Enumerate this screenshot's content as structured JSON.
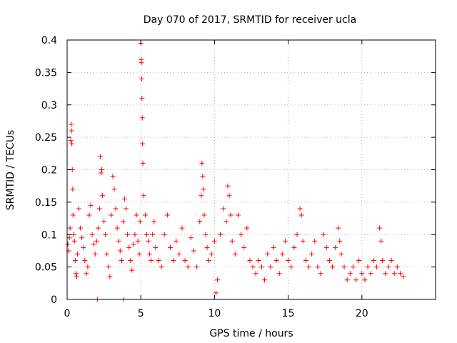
{
  "chart_data": {
    "type": "scatter",
    "title": "Day 070 of 2017, SRMTID for receiver ucla",
    "xlabel": "GPS time / hours",
    "ylabel": "SRMTID / TECUs",
    "xlim": [
      0,
      25
    ],
    "ylim": [
      0,
      0.4
    ],
    "xticks": [
      0,
      5,
      10,
      15,
      20
    ],
    "xtick_labels": [
      "0",
      "5",
      "10",
      "15",
      "20"
    ],
    "yticks": [
      0,
      0.05,
      0.1,
      0.15,
      0.2,
      0.25,
      0.3,
      0.35,
      0.4
    ],
    "ytick_labels": [
      "0",
      "0.05",
      "0.1",
      "0.15",
      "0.2",
      "0.25",
      "0.3",
      "0.35",
      "0.4"
    ],
    "grid": true,
    "marker": "plus",
    "color": "#ff0000",
    "series": [
      {
        "name": "SRMTID",
        "points": [
          [
            0.05,
            0.085
          ],
          [
            0.1,
            0.075
          ],
          [
            0.15,
            0.095
          ],
          [
            0.2,
            0.11
          ],
          [
            0.25,
            0.245
          ],
          [
            0.28,
            0.27
          ],
          [
            0.3,
            0.26
          ],
          [
            0.32,
            0.24
          ],
          [
            0.35,
            0.2
          ],
          [
            0.38,
            0.17
          ],
          [
            0.4,
            0.13
          ],
          [
            0.45,
            0.1
          ],
          [
            0.5,
            0.09
          ],
          [
            0.55,
            0.06
          ],
          [
            0.6,
            0.04
          ],
          [
            0.65,
            0.035
          ],
          [
            0.7,
            0.07
          ],
          [
            0.8,
            0.14
          ],
          [
            0.9,
            0.11
          ],
          [
            1.0,
            0.095
          ],
          [
            1.1,
            0.08
          ],
          [
            1.2,
            0.06
          ],
          [
            1.3,
            0.04
          ],
          [
            1.4,
            0.05
          ],
          [
            1.5,
            0.13
          ],
          [
            1.6,
            0.145
          ],
          [
            1.7,
            0.1
          ],
          [
            1.8,
            0.085
          ],
          [
            1.9,
            0.07
          ],
          [
            2.0,
            0.09
          ],
          [
            2.05,
            0.0
          ],
          [
            2.1,
            0.11
          ],
          [
            2.2,
            0.14
          ],
          [
            2.25,
            0.22
          ],
          [
            2.3,
            0.195
          ],
          [
            2.35,
            0.2
          ],
          [
            2.4,
            0.16
          ],
          [
            2.5,
            0.12
          ],
          [
            2.6,
            0.1
          ],
          [
            2.7,
            0.07
          ],
          [
            2.8,
            0.05
          ],
          [
            2.9,
            0.035
          ],
          [
            3.0,
            0.13
          ],
          [
            3.1,
            0.19
          ],
          [
            3.2,
            0.17
          ],
          [
            3.3,
            0.14
          ],
          [
            3.4,
            0.11
          ],
          [
            3.5,
            0.09
          ],
          [
            3.6,
            0.075
          ],
          [
            3.7,
            0.06
          ],
          [
            3.8,
            0.12
          ],
          [
            3.85,
            0.0
          ],
          [
            3.9,
            0.155
          ],
          [
            4.0,
            0.14
          ],
          [
            4.1,
            0.1
          ],
          [
            4.2,
            0.08
          ],
          [
            4.3,
            0.06
          ],
          [
            4.4,
            0.045
          ],
          [
            4.5,
            0.085
          ],
          [
            4.6,
            0.1
          ],
          [
            4.7,
            0.13
          ],
          [
            4.8,
            0.09
          ],
          [
            4.9,
            0.07
          ],
          [
            4.95,
            0.12
          ],
          [
            5.0,
            0.395
          ],
          [
            5.02,
            0.37
          ],
          [
            5.04,
            0.365
          ],
          [
            5.06,
            0.34
          ],
          [
            5.08,
            0.31
          ],
          [
            5.1,
            0.28
          ],
          [
            5.12,
            0.24
          ],
          [
            5.14,
            0.21
          ],
          [
            5.2,
            0.16
          ],
          [
            5.3,
            0.13
          ],
          [
            5.4,
            0.1
          ],
          [
            5.5,
            0.09
          ],
          [
            5.6,
            0.07
          ],
          [
            5.7,
            0.06
          ],
          [
            5.8,
            0.1
          ],
          [
            5.9,
            0.12
          ],
          [
            6.0,
            0.08
          ],
          [
            6.2,
            0.06
          ],
          [
            6.4,
            0.05
          ],
          [
            6.6,
            0.1
          ],
          [
            6.8,
            0.13
          ],
          [
            7.0,
            0.08
          ],
          [
            7.2,
            0.06
          ],
          [
            7.4,
            0.09
          ],
          [
            7.6,
            0.07
          ],
          [
            7.8,
            0.11
          ],
          [
            8.0,
            0.06
          ],
          [
            8.2,
            0.05
          ],
          [
            8.4,
            0.095
          ],
          [
            8.6,
            0.075
          ],
          [
            8.8,
            0.05
          ],
          [
            9.0,
            0.12
          ],
          [
            9.1,
            0.16
          ],
          [
            9.15,
            0.21
          ],
          [
            9.2,
            0.19
          ],
          [
            9.25,
            0.17
          ],
          [
            9.3,
            0.13
          ],
          [
            9.4,
            0.1
          ],
          [
            9.5,
            0.08
          ],
          [
            9.6,
            0.06
          ],
          [
            9.8,
            0.07
          ],
          [
            10.0,
            0.09
          ],
          [
            10.1,
            0.01
          ],
          [
            10.2,
            0.03
          ],
          [
            10.4,
            0.1
          ],
          [
            10.6,
            0.14
          ],
          [
            10.8,
            0.12
          ],
          [
            10.9,
            0.175
          ],
          [
            11.0,
            0.16
          ],
          [
            11.1,
            0.13
          ],
          [
            11.2,
            0.09
          ],
          [
            11.4,
            0.07
          ],
          [
            11.6,
            0.13
          ],
          [
            11.8,
            0.1
          ],
          [
            12.0,
            0.08
          ],
          [
            12.2,
            0.11
          ],
          [
            12.4,
            0.06
          ],
          [
            12.6,
            0.05
          ],
          [
            12.8,
            0.04
          ],
          [
            13.0,
            0.06
          ],
          [
            13.2,
            0.05
          ],
          [
            13.4,
            0.03
          ],
          [
            13.6,
            0.07
          ],
          [
            13.8,
            0.05
          ],
          [
            14.0,
            0.08
          ],
          [
            14.2,
            0.06
          ],
          [
            14.4,
            0.04
          ],
          [
            14.6,
            0.07
          ],
          [
            14.8,
            0.09
          ],
          [
            15.0,
            0.06
          ],
          [
            15.2,
            0.05
          ],
          [
            15.4,
            0.08
          ],
          [
            15.6,
            0.1
          ],
          [
            15.8,
            0.14
          ],
          [
            15.9,
            0.13
          ],
          [
            16.0,
            0.09
          ],
          [
            16.2,
            0.06
          ],
          [
            16.4,
            0.05
          ],
          [
            16.6,
            0.07
          ],
          [
            16.8,
            0.09
          ],
          [
            17.0,
            0.05
          ],
          [
            17.2,
            0.04
          ],
          [
            17.4,
            0.1
          ],
          [
            17.6,
            0.08
          ],
          [
            17.8,
            0.06
          ],
          [
            18.0,
            0.05
          ],
          [
            18.2,
            0.08
          ],
          [
            18.4,
            0.11
          ],
          [
            18.5,
            0.09
          ],
          [
            18.6,
            0.07
          ],
          [
            18.8,
            0.05
          ],
          [
            19.0,
            0.03
          ],
          [
            19.2,
            0.04
          ],
          [
            19.4,
            0.05
          ],
          [
            19.6,
            0.03
          ],
          [
            19.8,
            0.06
          ],
          [
            20.0,
            0.04
          ],
          [
            20.2,
            0.03
          ],
          [
            20.4,
            0.05
          ],
          [
            20.6,
            0.04
          ],
          [
            20.8,
            0.06
          ],
          [
            21.0,
            0.05
          ],
          [
            21.2,
            0.11
          ],
          [
            21.3,
            0.09
          ],
          [
            21.4,
            0.06
          ],
          [
            21.6,
            0.04
          ],
          [
            21.8,
            0.05
          ],
          [
            22.0,
            0.06
          ],
          [
            22.2,
            0.04
          ],
          [
            22.4,
            0.05
          ],
          [
            22.6,
            0.04
          ],
          [
            22.8,
            0.035
          ]
        ]
      }
    ]
  }
}
